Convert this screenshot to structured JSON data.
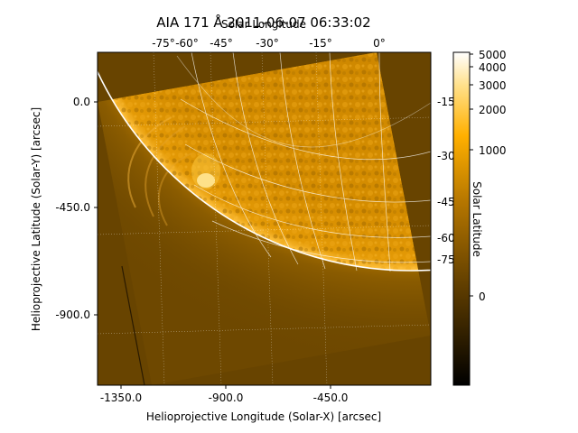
{
  "title": "AIA 171 Å 2011-06-07 06:33:02",
  "top_axis": {
    "label": "Solar Longitude",
    "ticks": [
      "-75°",
      "-60°",
      "-45°",
      "-30°",
      "-15°",
      "0°"
    ]
  },
  "right_axis": {
    "label": "Solar Latitude",
    "ticks": [
      "-15°",
      "-30°",
      "-45°",
      "-60°",
      "-75°"
    ]
  },
  "x_axis": {
    "label": "Helioprojective Longitude (Solar-X) [arcsec]",
    "ticks": [
      "-1350.0",
      "-900.0",
      "-450.0"
    ]
  },
  "y_axis": {
    "label": "Helioprojective Latitude (Solar-Y) [arcsec]",
    "ticks": [
      "0.0",
      "-450.0",
      "-900.0"
    ]
  },
  "colorbar": {
    "colormap": "sdoaia171",
    "scale": "log",
    "ticks": [
      "5000",
      "4000",
      "3000",
      "2000",
      "1000",
      "0"
    ]
  },
  "colors": {
    "background": "#684400",
    "limb": "#ffffff",
    "grid": "#ffffff",
    "disk_mid": "#d08a00",
    "bright": "#ffd24a"
  }
}
